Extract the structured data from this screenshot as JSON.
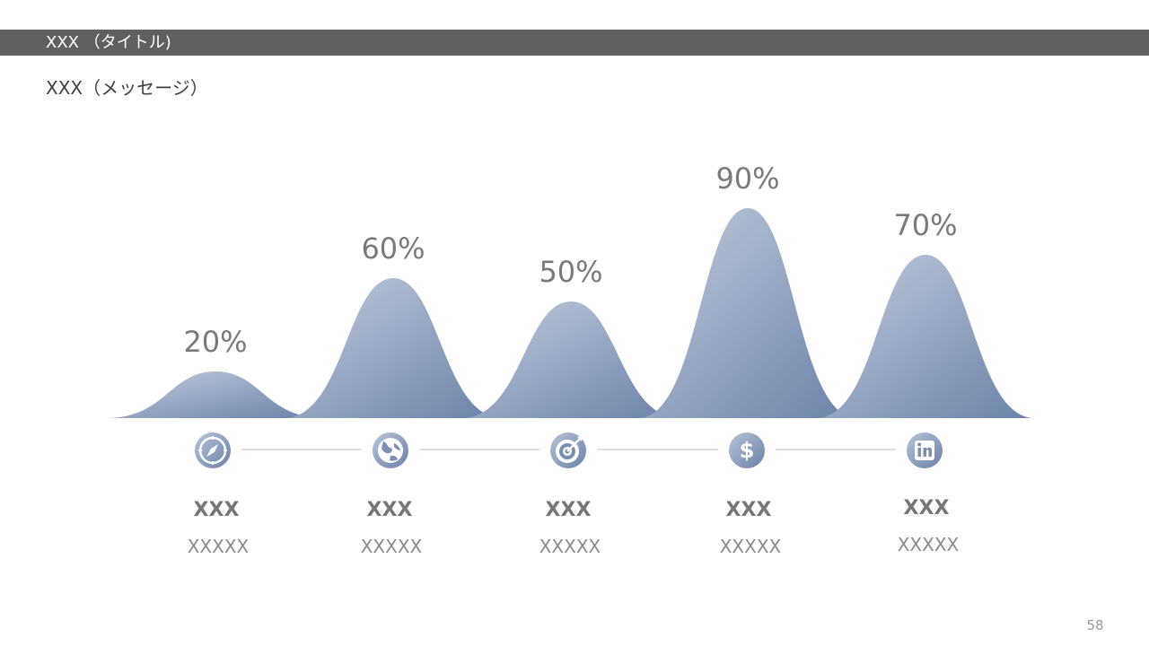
{
  "header": {
    "title": "XXX （タイトル)",
    "message": "XXX（メッセージ）"
  },
  "page_number": "58",
  "chart_data": {
    "type": "area",
    "categories": [
      "XXX",
      "XXX",
      "XXX",
      "XXX",
      "XXX"
    ],
    "values": [
      20,
      60,
      50,
      90,
      70
    ],
    "value_labels": [
      "20%",
      "60%",
      "50%",
      "90%",
      "70%"
    ],
    "unit": "%",
    "ylim": [
      0,
      100
    ],
    "grid": false,
    "colors": {
      "fill_light": "#c3cddd",
      "fill_dark": "#6a81a8",
      "label": "#7a7a7a",
      "connector": "#bfbfbf"
    }
  },
  "items": [
    {
      "title": "XXX",
      "subtitle": "XXXXX",
      "icon": "compass-icon"
    },
    {
      "title": "XXX",
      "subtitle": "XXXXX",
      "icon": "globe-icon"
    },
    {
      "title": "XXX",
      "subtitle": "XXXXX",
      "icon": "target-icon"
    },
    {
      "title": "XXX",
      "subtitle": "XXXXX",
      "icon": "dollar-icon"
    },
    {
      "title": "XXX",
      "subtitle": "XXXXX",
      "icon": "linkedin-icon"
    }
  ]
}
